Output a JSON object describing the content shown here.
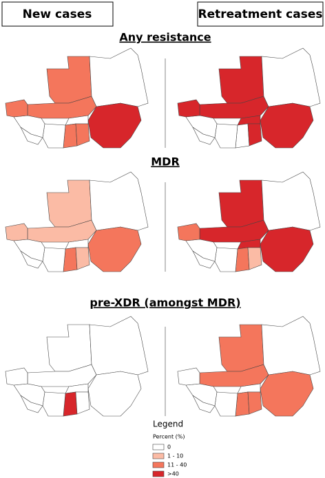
{
  "headers": [
    "New cases",
    "Retreatment cases"
  ],
  "sections": [
    "Any resistance",
    "MDR",
    "pre-XDR (amongst MDR)"
  ],
  "legend": {
    "title": "Legend",
    "subtitle": "Percent (%)",
    "items": [
      "0",
      "1 - 10",
      "11 - 40",
      ">40"
    ]
  }
}
